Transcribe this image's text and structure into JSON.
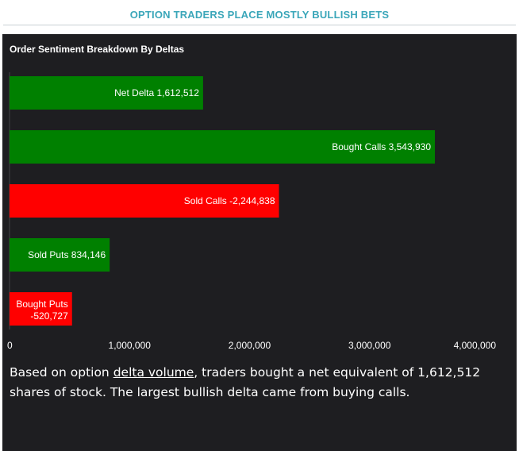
{
  "header": {
    "title": "OPTION TRADERS PLACE MOSTLY BULLISH BETS"
  },
  "chart_data": {
    "type": "bar",
    "orientation": "horizontal",
    "title": "Order Sentiment Breakdown By Deltas",
    "categories": [
      "Net Delta",
      "Bought Calls",
      "Sold Calls",
      "Sold Puts",
      "Bought Puts"
    ],
    "values": [
      1612512,
      3543930,
      -2244838,
      834146,
      -520727
    ],
    "value_labels": [
      "1,612,512",
      "3,543,930",
      "-2,244,838",
      "834,146",
      "-520,727"
    ],
    "bar_colors": [
      "#008000",
      "#008000",
      "#ff0000",
      "#008000",
      "#ff0000"
    ],
    "xlim": [
      0,
      4000000
    ],
    "x_ticks": [
      0,
      1000000,
      2000000,
      3000000,
      4000000
    ],
    "x_tick_labels": [
      "0",
      "1,000,000",
      "2,000,000",
      "3,000,000",
      "4,000,000"
    ],
    "grid": false,
    "legend": "none"
  },
  "caption": {
    "before": "Based on option ",
    "link": "delta volume",
    "after": ", traders bought a net equivalent of 1,612,512 shares of stock. The largest bullish delta came from buying calls."
  }
}
